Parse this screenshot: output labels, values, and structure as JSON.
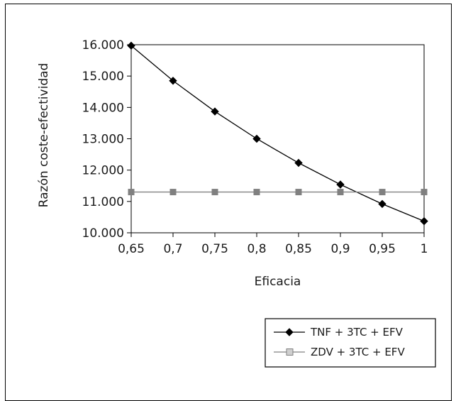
{
  "chart_data": {
    "type": "line",
    "x": [
      0.65,
      0.7,
      0.75,
      0.8,
      0.85,
      0.9,
      0.95,
      1
    ],
    "x_tick_labels": [
      "0,65",
      "0,7",
      "0,75",
      "0,8",
      "0,85",
      "0,9",
      "0,95",
      "1"
    ],
    "y_tick_values": [
      10000,
      11000,
      12000,
      13000,
      14000,
      15000,
      16000
    ],
    "y_tick_labels": [
      "10.000",
      "11.000",
      "12.000",
      "13.000",
      "14.000",
      "15.000",
      "16.000"
    ],
    "xlabel": "Eficacia",
    "ylabel": "Razón coste-efectividad",
    "xlim": [
      0.65,
      1
    ],
    "ylim": [
      10000,
      16000
    ],
    "grid": false,
    "legend_position": "bottom-right",
    "series": [
      {
        "name": "TNF + 3TC + EFV",
        "marker": "diamond",
        "color": "#000000",
        "values": [
          15970,
          14850,
          13870,
          13000,
          12230,
          11540,
          10920,
          10370
        ]
      },
      {
        "name": "ZDV + 3TC + EFV",
        "marker": "square",
        "color": "#808080",
        "values": [
          11300,
          11300,
          11300,
          11300,
          11300,
          11300,
          11300,
          11300
        ]
      }
    ]
  }
}
